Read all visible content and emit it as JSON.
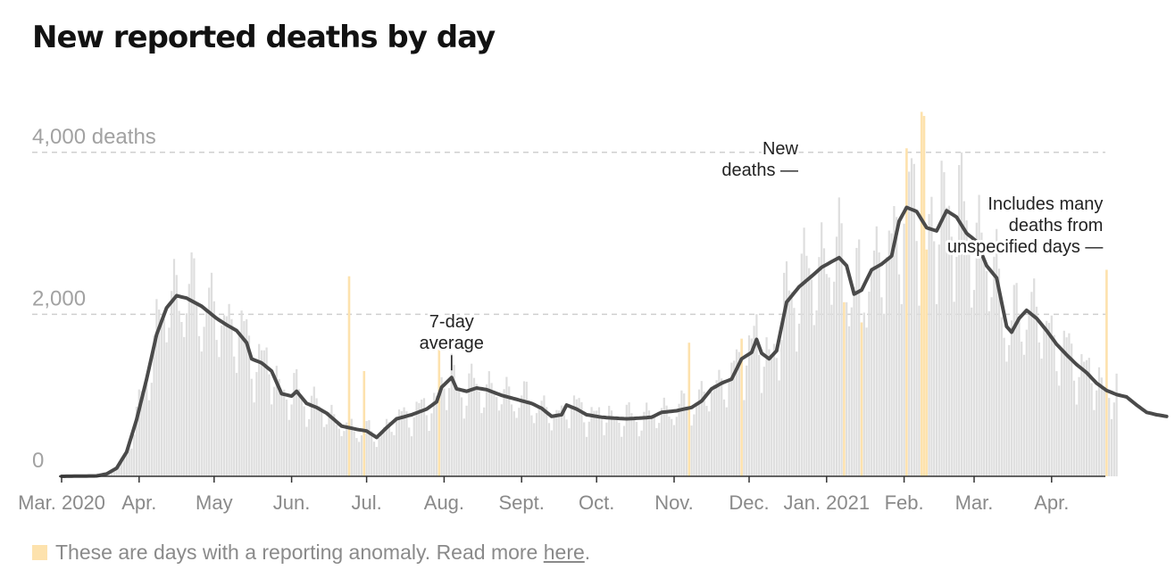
{
  "title": "New reported deaths by day",
  "colors": {
    "bar": "#dedede",
    "anomaly": "#fde2ad",
    "line": "#4a4a4a",
    "grid": "#cfcfcf",
    "axis": "#333333"
  },
  "chart_data": {
    "type": "bar",
    "title": "New reported deaths by day",
    "ylim": [
      0,
      4800
    ],
    "y_ticks": [
      {
        "value": 0,
        "label": "0"
      },
      {
        "value": 2000,
        "label": "2,000"
      },
      {
        "value": 4000,
        "label": "4,000 deaths"
      }
    ],
    "x_start": "2020-03-01",
    "x_end": "2021-04-13",
    "x_ticks": [
      {
        "day": 0,
        "label": "Mar. 2020"
      },
      {
        "day": 31,
        "label": "Apr."
      },
      {
        "day": 61,
        "label": "May"
      },
      {
        "day": 92,
        "label": "Jun."
      },
      {
        "day": 122,
        "label": "Jul."
      },
      {
        "day": 153,
        "label": "Aug."
      },
      {
        "day": 184,
        "label": "Sept."
      },
      {
        "day": 214,
        "label": "Oct."
      },
      {
        "day": 245,
        "label": "Nov."
      },
      {
        "day": 275,
        "label": "Dec."
      },
      {
        "day": 306,
        "label": "Jan. 2021"
      },
      {
        "day": 337,
        "label": "Feb."
      },
      {
        "day": 365,
        "label": "Mar."
      },
      {
        "day": 396,
        "label": "Apr."
      }
    ],
    "series": [
      {
        "name": "7-day average",
        "type": "line",
        "keypoints": [
          [
            0,
            0
          ],
          [
            14,
            5
          ],
          [
            18,
            30
          ],
          [
            22,
            100
          ],
          [
            26,
            300
          ],
          [
            30,
            700
          ],
          [
            34,
            1200
          ],
          [
            38,
            1750
          ],
          [
            42,
            2080
          ],
          [
            46,
            2230
          ],
          [
            50,
            2200
          ],
          [
            56,
            2100
          ],
          [
            62,
            1950
          ],
          [
            66,
            1870
          ],
          [
            70,
            1800
          ],
          [
            74,
            1650
          ],
          [
            76,
            1450
          ],
          [
            80,
            1400
          ],
          [
            84,
            1300
          ],
          [
            88,
            1020
          ],
          [
            92,
            990
          ],
          [
            94,
            1050
          ],
          [
            98,
            900
          ],
          [
            102,
            850
          ],
          [
            106,
            780
          ],
          [
            112,
            620
          ],
          [
            118,
            580
          ],
          [
            122,
            560
          ],
          [
            126,
            480
          ],
          [
            130,
            600
          ],
          [
            134,
            710
          ],
          [
            140,
            760
          ],
          [
            146,
            830
          ],
          [
            150,
            920
          ],
          [
            152,
            1100
          ],
          [
            156,
            1220
          ],
          [
            158,
            1080
          ],
          [
            162,
            1050
          ],
          [
            166,
            1090
          ],
          [
            170,
            1070
          ],
          [
            176,
            1000
          ],
          [
            182,
            950
          ],
          [
            188,
            900
          ],
          [
            192,
            840
          ],
          [
            196,
            740
          ],
          [
            200,
            760
          ],
          [
            202,
            880
          ],
          [
            206,
            830
          ],
          [
            210,
            760
          ],
          [
            216,
            730
          ],
          [
            220,
            720
          ],
          [
            226,
            710
          ],
          [
            232,
            720
          ],
          [
            236,
            730
          ],
          [
            240,
            790
          ],
          [
            246,
            810
          ],
          [
            252,
            850
          ],
          [
            256,
            930
          ],
          [
            260,
            1080
          ],
          [
            264,
            1150
          ],
          [
            268,
            1200
          ],
          [
            272,
            1450
          ],
          [
            276,
            1530
          ],
          [
            278,
            1690
          ],
          [
            280,
            1520
          ],
          [
            283,
            1450
          ],
          [
            286,
            1550
          ],
          [
            290,
            2150
          ],
          [
            295,
            2340
          ],
          [
            300,
            2470
          ],
          [
            304,
            2580
          ],
          [
            308,
            2650
          ],
          [
            311,
            2700
          ],
          [
            314,
            2600
          ],
          [
            317,
            2250
          ],
          [
            320,
            2300
          ],
          [
            324,
            2550
          ],
          [
            328,
            2620
          ],
          [
            332,
            2720
          ],
          [
            335,
            3150
          ],
          [
            338,
            3320
          ],
          [
            342,
            3270
          ],
          [
            346,
            3070
          ],
          [
            350,
            3030
          ],
          [
            354,
            3280
          ],
          [
            358,
            3200
          ],
          [
            362,
            3000
          ],
          [
            366,
            2900
          ],
          [
            370,
            2600
          ],
          [
            374,
            2450
          ],
          [
            378,
            1850
          ],
          [
            380,
            1780
          ],
          [
            383,
            1950
          ],
          [
            386,
            2050
          ],
          [
            390,
            1950
          ],
          [
            394,
            1800
          ],
          [
            398,
            1630
          ],
          [
            402,
            1500
          ],
          [
            406,
            1380
          ],
          [
            410,
            1280
          ],
          [
            414,
            1150
          ],
          [
            418,
            1060
          ],
          [
            422,
            1010
          ],
          [
            426,
            980
          ],
          [
            430,
            880
          ],
          [
            434,
            790
          ],
          [
            438,
            760
          ],
          [
            442,
            740
          ]
        ]
      }
    ],
    "anomaly_days": [
      {
        "day": 115,
        "value": 2470
      },
      {
        "day": 121,
        "value": 1300
      },
      {
        "day": 151,
        "value": 1580
      },
      {
        "day": 251,
        "value": 1650
      },
      {
        "day": 272,
        "value": 1700
      },
      {
        "day": 313,
        "value": 2150
      },
      {
        "day": 320,
        "value": 1900
      },
      {
        "day": 338,
        "value": 4050
      },
      {
        "day": 344,
        "value": 4500
      },
      {
        "day": 345,
        "value": 4450
      },
      {
        "day": 346,
        "value": 2800
      },
      {
        "day": 418,
        "value": 2550
      }
    ],
    "annotations": [
      {
        "name": "annotation-7day-average",
        "lines": [
          "7-day",
          "average"
        ],
        "anchor_day": 156,
        "anchor_value": 1220,
        "align": "center"
      },
      {
        "name": "annotation-new-deaths",
        "lines": [
          "New",
          "deaths —"
        ],
        "anchor_day": 300,
        "anchor_value": 3600,
        "align": "end"
      },
      {
        "name": "annotation-unspecified-days",
        "lines": [
          "Includes many",
          "deaths from",
          "unspecified days —"
        ],
        "anchor_day": 418,
        "anchor_value": 2800,
        "align": "end"
      }
    ]
  },
  "legend": {
    "text": "These are days with a reporting anomaly. Read more",
    "link_text": "here",
    "suffix": "."
  }
}
